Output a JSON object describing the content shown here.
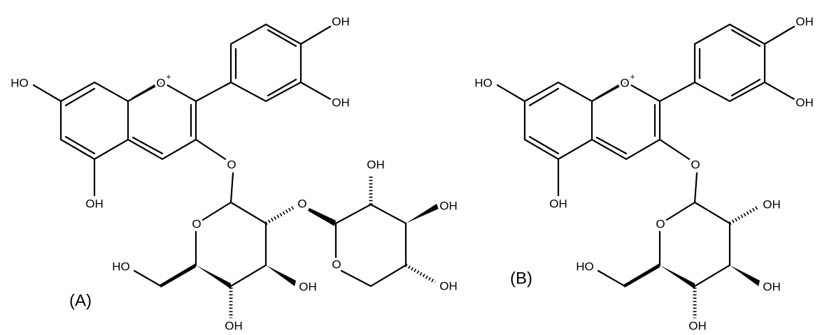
{
  "structures": [
    {
      "label": "(A)",
      "atoms": [
        "HO",
        "O",
        "+",
        "OH",
        "OH",
        "OH",
        "O",
        "O",
        "HO",
        "OH",
        "OH",
        "O",
        "O",
        "OH",
        "OH",
        "OH"
      ]
    },
    {
      "label": "(B)",
      "atoms": [
        "HO",
        "O",
        "+",
        "OH",
        "OH",
        "OH",
        "O",
        "O",
        "HO",
        "OH",
        "OH",
        "OH"
      ]
    }
  ]
}
